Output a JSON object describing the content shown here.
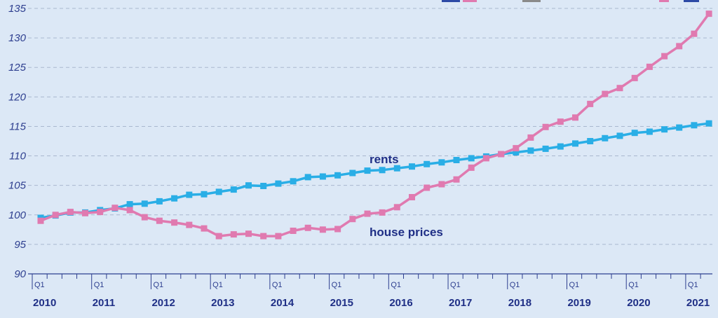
{
  "chart_data": {
    "type": "line",
    "ylim": [
      90,
      135
    ],
    "yticks": [
      90,
      95,
      100,
      105,
      110,
      115,
      120,
      125,
      130,
      135
    ],
    "grid": "horizontal dashed",
    "quarter_label": "Q1",
    "years": [
      "2010",
      "2011",
      "2012",
      "2013",
      "2014",
      "2015",
      "2016",
      "2017",
      "2018",
      "2019",
      "2020",
      "2021"
    ],
    "x_start": "2010 Q1",
    "x_end": "2021 Q2",
    "series": [
      {
        "name": "rents",
        "color": "#2aaee6",
        "values": [
          99.5,
          99.9,
          100.4,
          100.4,
          100.8,
          101.1,
          101.8,
          101.9,
          102.3,
          102.8,
          103.4,
          103.5,
          103.9,
          104.3,
          105.0,
          104.9,
          105.3,
          105.7,
          106.4,
          106.5,
          106.7,
          107.1,
          107.5,
          107.6,
          107.9,
          108.2,
          108.6,
          108.9,
          109.3,
          109.6,
          109.9,
          110.3,
          110.6,
          110.9,
          111.2,
          111.6,
          112.1,
          112.5,
          113.0,
          113.4,
          113.9,
          114.1,
          114.5,
          114.8,
          115.2,
          115.5
        ]
      },
      {
        "name": "house prices",
        "color": "#e07ab0",
        "values": [
          99.0,
          100.0,
          100.5,
          100.3,
          100.5,
          101.2,
          100.8,
          99.6,
          99.0,
          98.7,
          98.3,
          97.7,
          96.4,
          96.7,
          96.8,
          96.4,
          96.4,
          97.3,
          97.8,
          97.5,
          97.6,
          99.3,
          100.2,
          100.4,
          101.3,
          103.0,
          104.6,
          105.2,
          106.0,
          108.0,
          109.6,
          110.3,
          111.3,
          113.1,
          114.9,
          115.8,
          116.5,
          118.8,
          120.5,
          121.5,
          123.2,
          125.1,
          126.9,
          128.6,
          130.7,
          134.1
        ]
      }
    ],
    "labels": {
      "rents": "rents",
      "house_prices": "house prices"
    }
  },
  "legend_colors": [
    "#2d4aa6",
    "#e07ab0",
    "#8a8a8a",
    "#e07ab0",
    "#2d4aa6"
  ]
}
